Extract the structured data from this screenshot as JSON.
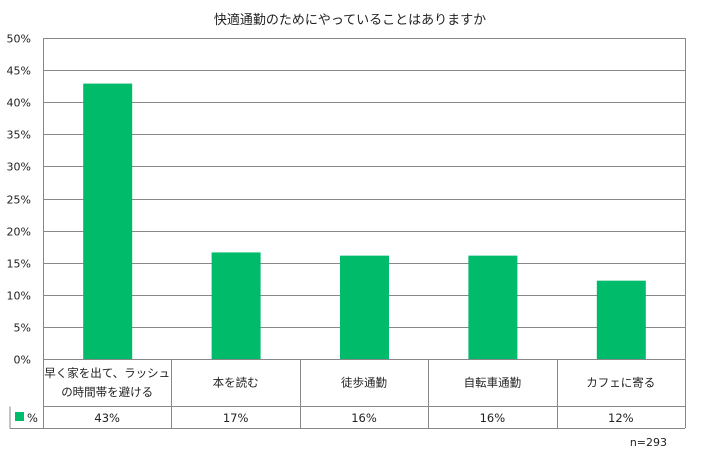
{
  "chart_data": {
    "type": "bar",
    "title": "快適通勤のためにやっていることはありますか",
    "categories": [
      [
        "早く家を出て、ラッシュ",
        "の時間帯を避ける"
      ],
      [
        "本を読む"
      ],
      [
        "徒歩通勤"
      ],
      [
        "自転車通勤"
      ],
      [
        "カフェに寄る"
      ]
    ],
    "series": [
      {
        "name": "%",
        "values": [
          42.9,
          16.6,
          16.1,
          16.1,
          12.2
        ],
        "labels": [
          "43%",
          "17%",
          "16%",
          "16%",
          "12%"
        ],
        "color": "#00bb6a"
      }
    ],
    "yticks": [
      "0%",
      "5%",
      "10%",
      "15%",
      "20%",
      "25%",
      "30%",
      "35%",
      "40%",
      "45%",
      "50%"
    ],
    "ylim": [
      0,
      50
    ],
    "grid": true,
    "legend": "data-table",
    "note": "n=293"
  }
}
